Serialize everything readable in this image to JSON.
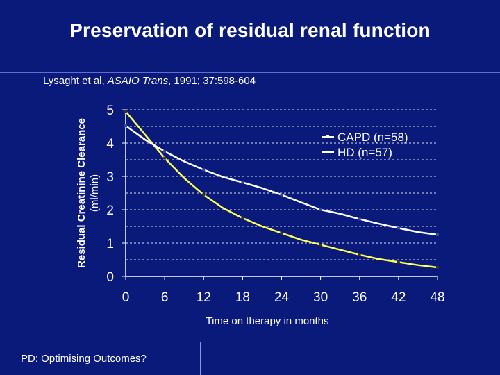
{
  "slide": {
    "title": "Preservation of residual renal function",
    "citation_authors": "Lysaght et al, ",
    "citation_journal": "ASAIO Trans",
    "citation_rest": ", 1991; 37:598-604",
    "footer_prefix": "PD:",
    "footer_text": " Optimising Outcomes?"
  },
  "colors": {
    "background": "#0a1a7a",
    "capd_series": "#ffff55",
    "hd_series": "#ffffff",
    "text": "#ffffff"
  },
  "chart_data": {
    "type": "line",
    "title": "",
    "xlabel": "Time on therapy in months",
    "ylabel": "Residual Creatinine Clearance (ml/min)",
    "xlim": [
      0,
      48
    ],
    "ylim": [
      0,
      5
    ],
    "xticks": [
      0,
      6,
      12,
      18,
      24,
      30,
      36,
      42,
      48
    ],
    "yticks": [
      0,
      1,
      2,
      3,
      4,
      5
    ],
    "grid": "horizontal dashed",
    "legend_position": "top-right",
    "series": [
      {
        "name": "CAPD (n=58)",
        "color": "#ffff55",
        "x": [
          0,
          3,
          6,
          9,
          12,
          15,
          18,
          21,
          24,
          27,
          30,
          33,
          36,
          39,
          42,
          45,
          48
        ],
        "y": [
          4.95,
          4.25,
          3.55,
          2.95,
          2.45,
          2.05,
          1.75,
          1.5,
          1.3,
          1.1,
          0.95,
          0.8,
          0.65,
          0.52,
          0.43,
          0.34,
          0.27
        ]
      },
      {
        "name": "HD (n=57)",
        "color": "#ffffff",
        "x": [
          0,
          3,
          6,
          9,
          12,
          15,
          18,
          21,
          24,
          27,
          30,
          33,
          36,
          39,
          42,
          45,
          48
        ],
        "y": [
          4.52,
          4.1,
          3.75,
          3.45,
          3.2,
          2.98,
          2.82,
          2.65,
          2.45,
          2.22,
          2.0,
          1.88,
          1.72,
          1.58,
          1.45,
          1.33,
          1.25
        ]
      }
    ]
  }
}
